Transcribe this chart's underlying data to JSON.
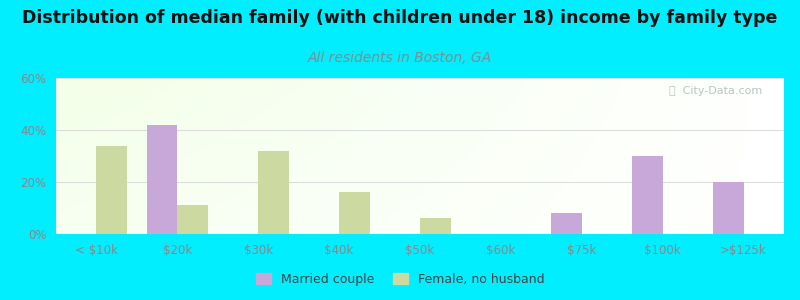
{
  "title": "Distribution of median family (with children under 18) income by family type",
  "subtitle": "All residents in Boston, GA",
  "categories": [
    "< $10k",
    "$20k",
    "$30k",
    "$40k",
    "$50k",
    "$60k",
    "$75k",
    "$100k",
    ">$125k"
  ],
  "married_values": [
    0,
    42,
    0,
    0,
    0,
    0,
    8,
    30,
    20
  ],
  "female_values": [
    34,
    11,
    32,
    16,
    6,
    0,
    0,
    0,
    0
  ],
  "married_color": "#c8a8d8",
  "female_color": "#ccd9a0",
  "fig_bg_color": "#00eeff",
  "ylim": [
    0,
    60
  ],
  "yticks": [
    0,
    20,
    40,
    60
  ],
  "ytick_labels": [
    "0%",
    "20%",
    "40%",
    "60%"
  ],
  "bar_width": 0.38,
  "title_fontsize": 12.5,
  "subtitle_fontsize": 10,
  "subtitle_color": "#7a9090",
  "title_color": "#111111",
  "tick_color": "#888888",
  "legend_labels": [
    "Married couple",
    "Female, no husband"
  ],
  "watermark": "ⓘ  City-Data.com",
  "watermark_color": "#aabcbc",
  "grid_color": "#dddddd"
}
